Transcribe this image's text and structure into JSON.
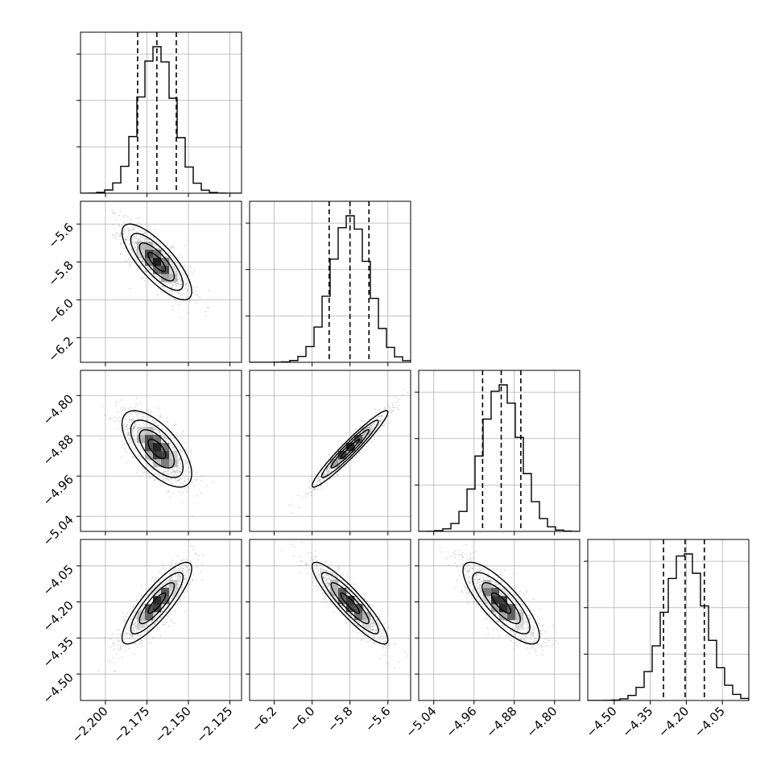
{
  "chart_data": {
    "type": "corner",
    "grid": true,
    "parameters": [
      {
        "range": [
          -2.215,
          -2.118
        ],
        "ticks": [
          -2.2,
          -2.175,
          -2.15,
          -2.125
        ],
        "tick_labels": [
          "−2.200",
          "−2.175",
          "−2.150",
          "−2.125"
        ],
        "quantiles": [
          -2.1806,
          -2.169,
          -2.1573
        ],
        "mean": -2.169,
        "sd": 0.0105
      },
      {
        "range": [
          -6.33,
          -5.48
        ],
        "ticks": [
          -6.2,
          -6.0,
          -5.8,
          -5.6
        ],
        "tick_labels": [
          "−6.2",
          "−6.0",
          "−5.8",
          "−5.6"
        ],
        "quantiles": [
          -5.91,
          -5.8,
          -5.7
        ],
        "mean": -5.8,
        "sd": 0.1
      },
      {
        "range": [
          -5.07,
          -4.75
        ],
        "ticks": [
          -5.04,
          -4.96,
          -4.88,
          -4.8
        ],
        "tick_labels": [
          "−5.04",
          "−4.96",
          "−4.88",
          "−4.80"
        ],
        "quantiles": [
          -4.943,
          -4.906,
          -4.867
        ],
        "mean": -4.906,
        "sd": 0.038
      },
      {
        "range": [
          -4.61,
          -3.94
        ],
        "ticks": [
          -4.5,
          -4.35,
          -4.2,
          -4.05
        ],
        "tick_labels": [
          "−4.50",
          "−4.35",
          "−4.20",
          "−4.05"
        ],
        "quantiles": [
          -4.295,
          -4.205,
          -4.125
        ],
        "mean": -4.205,
        "sd": 0.085
      }
    ],
    "correlations": [
      {
        "pair": [
          0,
          1
        ],
        "r": -0.78
      },
      {
        "pair": [
          0,
          2
        ],
        "r": -0.65
      },
      {
        "pair": [
          0,
          3
        ],
        "r": 0.85
      },
      {
        "pair": [
          1,
          2
        ],
        "r": 0.96
      },
      {
        "pair": [
          1,
          3
        ],
        "r": -0.9
      },
      {
        "pair": [
          2,
          3
        ],
        "r": -0.8
      }
    ],
    "contour_levels_sigma": [
      0.5,
      1.0,
      1.5,
      2.0
    ],
    "colors": {
      "line": "#000000",
      "points": "#8c8c8c",
      "grid": "#b0b0b0",
      "background": "#ffffff"
    }
  }
}
